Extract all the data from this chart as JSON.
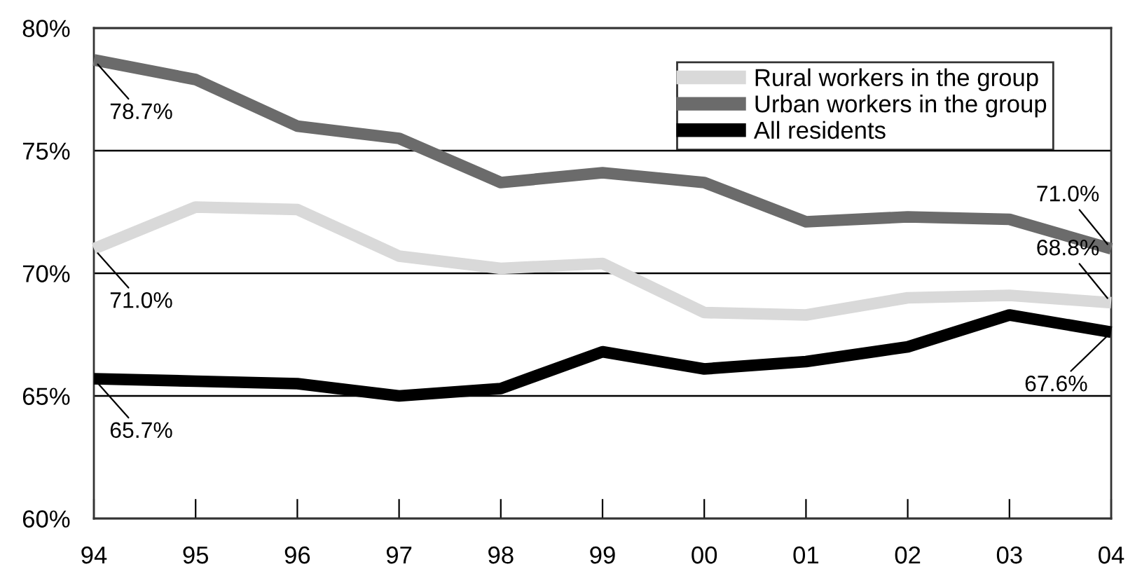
{
  "chart_data": {
    "type": "line",
    "categories": [
      "94",
      "95",
      "96",
      "97",
      "98",
      "99",
      "00",
      "01",
      "02",
      "03",
      "04"
    ],
    "series": [
      {
        "name": "Rural workers in the group",
        "color": "#d9d9d9",
        "values": [
          71.0,
          72.7,
          72.6,
          70.7,
          70.2,
          70.4,
          68.4,
          68.3,
          69.0,
          69.1,
          68.8
        ]
      },
      {
        "name": "Urban workers in the group",
        "color": "#6b6b6b",
        "values": [
          78.7,
          77.9,
          76.0,
          75.5,
          73.7,
          74.1,
          73.7,
          72.1,
          72.3,
          72.2,
          71.0
        ]
      },
      {
        "name": "All residents",
        "color": "#000000",
        "values": [
          65.7,
          65.6,
          65.5,
          65.0,
          65.3,
          66.8,
          66.1,
          66.4,
          67.0,
          68.3,
          67.6
        ]
      }
    ],
    "ylim": [
      60,
      80
    ],
    "yticks": [
      {
        "value": 60,
        "label": "60%"
      },
      {
        "value": 65,
        "label": "65%"
      },
      {
        "value": 70,
        "label": "70%"
      },
      {
        "value": 75,
        "label": "75%"
      },
      {
        "value": 80,
        "label": "80%"
      }
    ],
    "grid": "y",
    "legend": "top right",
    "marker": "none",
    "line_style": "solid",
    "annotations": [
      {
        "text": "78.7%",
        "x": "94",
        "y": 78.7
      },
      {
        "text": "71.0%",
        "x": "94",
        "y": 71.0
      },
      {
        "text": "65.7%",
        "x": "94",
        "y": 65.7
      },
      {
        "text": "71.0%",
        "x": "04",
        "y": 71.0
      },
      {
        "text": "68.8%",
        "x": "04",
        "y": 68.8
      },
      {
        "text": "67.6%",
        "x": "04",
        "y": 67.6
      }
    ]
  }
}
